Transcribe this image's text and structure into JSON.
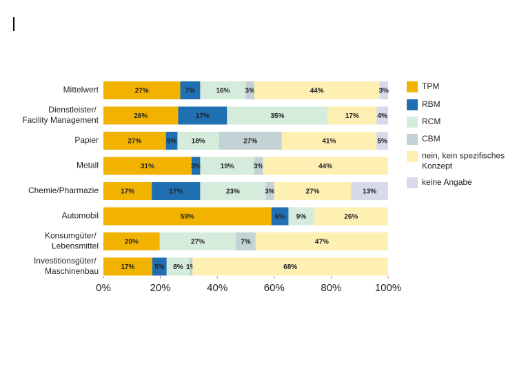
{
  "chart_data": {
    "type": "bar",
    "orientation": "horizontal",
    "stacked": "percent",
    "categories": [
      "Mittelwert",
      "Dienstleister/\nFacility Management",
      "Papier",
      "Metall",
      "Chemie/Pharmazie",
      "Automobil",
      "Konsumgüter/\nLebensmittel",
      "Investitionsgüter/\nMaschinenbau"
    ],
    "series": [
      {
        "name": "TPM",
        "color": "#f2b300",
        "values": [
          27,
          26,
          27,
          31,
          17,
          59,
          20,
          17
        ],
        "value_labels": [
          "27%",
          "26%",
          "27%",
          "31%",
          "17%",
          "59%",
          "20%",
          "17%"
        ]
      },
      {
        "name": "RBM",
        "color": "#1f6fb2",
        "values": [
          7,
          17,
          5,
          3,
          17,
          6,
          null,
          5
        ],
        "value_labels": [
          "7%",
          "17%",
          "5%",
          "3%",
          "17%",
          "6%",
          null,
          "5%"
        ]
      },
      {
        "name": "RCM",
        "color": "#d5ebdb",
        "values": [
          16,
          35,
          18,
          19,
          23,
          9,
          27,
          8
        ],
        "value_labels": [
          "16%",
          "35%",
          "18%",
          "19%",
          "23%",
          "9%",
          "27%",
          "8%"
        ]
      },
      {
        "name": "CBM",
        "color": "#c3d2d5",
        "values": [
          3,
          null,
          27,
          3,
          3,
          null,
          7,
          1
        ],
        "value_labels": [
          "3%",
          null,
          "27%",
          "3%",
          "3%",
          null,
          "7%",
          "1%"
        ]
      },
      {
        "name": "nein, kein spezifisches\nKonzept",
        "color": "#fdf0b2",
        "values": [
          44,
          17,
          41,
          44,
          27,
          26,
          47,
          68
        ],
        "value_labels": [
          "44%",
          "17%",
          "41%",
          "44%",
          "27%",
          "26%",
          "47%",
          "68%"
        ]
      },
      {
        "name": "keine Angabe",
        "color": "#d9d9ec",
        "values": [
          3,
          4,
          5,
          null,
          13,
          null,
          null,
          null
        ],
        "value_labels": [
          "3%",
          "4%",
          "5%",
          null,
          "13%",
          null,
          null,
          null
        ]
      }
    ],
    "xlim": [
      0,
      100
    ],
    "xticks": [
      {
        "value": 0,
        "label": "0%"
      },
      {
        "value": 20,
        "label": "20%"
      },
      {
        "value": 40,
        "label": "40%"
      },
      {
        "value": 60,
        "label": "60%"
      },
      {
        "value": 80,
        "label": "80%"
      },
      {
        "value": 100,
        "label": "100%"
      }
    ],
    "legend": "right"
  }
}
